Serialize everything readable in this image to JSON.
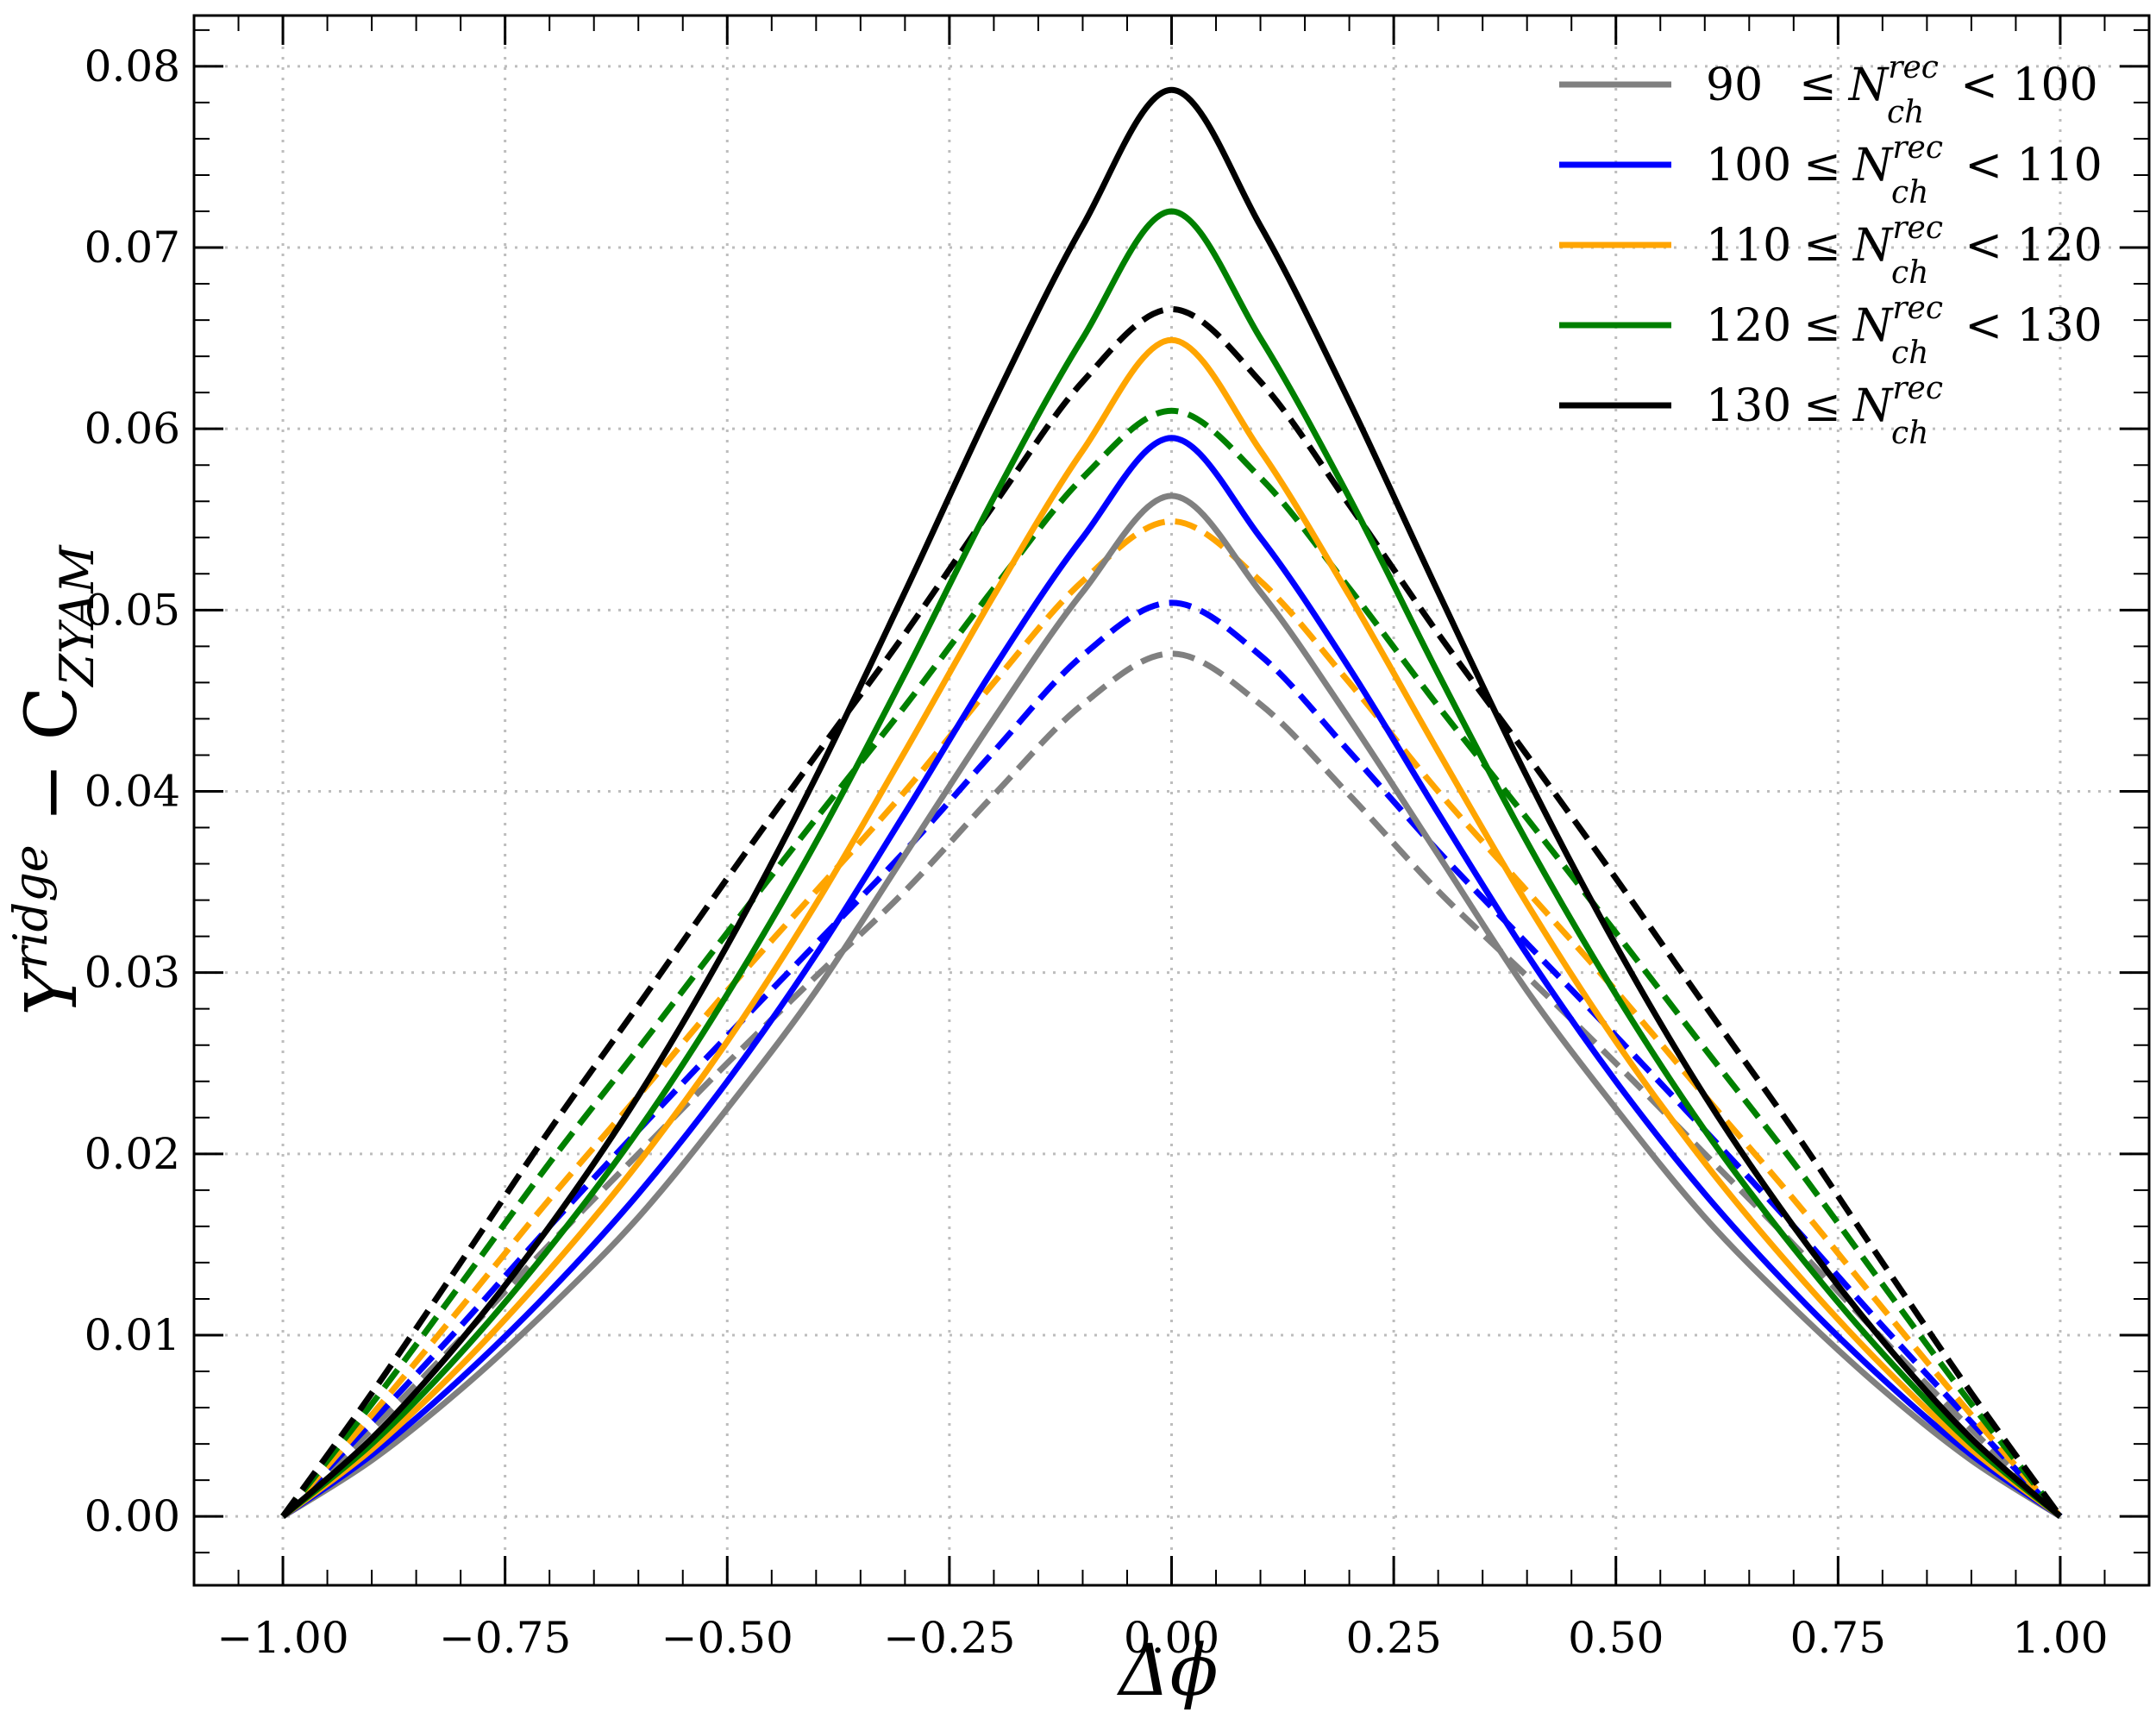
{
  "chart_data": {
    "type": "line",
    "title": "",
    "xlabel": "Δϕ",
    "ylabel": {
      "base": "Y",
      "sup": "ridge",
      "minus": " − C",
      "sub": "ZYAM"
    },
    "xlim": [
      -1.1,
      1.1
    ],
    "ylim": [
      -0.0038,
      0.0828
    ],
    "x_ticks": [
      -1.0,
      -0.75,
      -0.5,
      -0.25,
      0.0,
      0.25,
      0.5,
      0.75,
      1.0
    ],
    "x_tick_labels": [
      "−1.00",
      "−0.75",
      "−0.50",
      "−0.25",
      "0.00",
      "0.25",
      "0.50",
      "0.75",
      "1.00"
    ],
    "y_ticks": [
      0.0,
      0.01,
      0.02,
      0.03,
      0.04,
      0.05,
      0.06,
      0.07,
      0.08
    ],
    "y_tick_labels": [
      "0.00",
      "0.01",
      "0.02",
      "0.03",
      "0.04",
      "0.05",
      "0.06",
      "0.07",
      "0.08"
    ],
    "grid": true,
    "legend_position": "top-right",
    "x": [
      -1.0,
      -0.9,
      -0.8,
      -0.7,
      -0.6,
      -0.5,
      -0.4,
      -0.3,
      -0.2,
      -0.1,
      0.0,
      0.1,
      0.2,
      0.3,
      0.4,
      0.5,
      0.6,
      0.7,
      0.8,
      0.9,
      1.0
    ],
    "series": [
      {
        "name": "90 ≤ N_ch^rec < 100",
        "legend": {
          "lo": "90",
          "hi": "< 100"
        },
        "color": "#808080",
        "style": "solid",
        "values": [
          0.0,
          0.0031,
          0.007,
          0.0115,
          0.0165,
          0.0225,
          0.029,
          0.0365,
          0.044,
          0.051,
          0.0563,
          0.051,
          0.044,
          0.0365,
          0.029,
          0.0225,
          0.0165,
          0.0115,
          0.007,
          0.0031,
          0.0
        ]
      },
      {
        "name": "100 ≤ N_ch^rec < 110",
        "legend": {
          "lo": "100",
          "hi": "< 110"
        },
        "color": "#0000ff",
        "style": "solid",
        "values": [
          0.0,
          0.0034,
          0.0076,
          0.0124,
          0.0178,
          0.024,
          0.031,
          0.0388,
          0.0468,
          0.054,
          0.0595,
          0.054,
          0.0468,
          0.0388,
          0.031,
          0.024,
          0.0178,
          0.0124,
          0.0076,
          0.0034,
          0.0
        ]
      },
      {
        "name": "110 ≤ N_ch^rec < 120",
        "legend": {
          "lo": "110",
          "hi": "< 120"
        },
        "color": "#ffa500",
        "style": "solid",
        "values": [
          0.0,
          0.0037,
          0.0083,
          0.0136,
          0.0195,
          0.0262,
          0.0338,
          0.0422,
          0.0508,
          0.0588,
          0.0649,
          0.0588,
          0.0508,
          0.0422,
          0.0338,
          0.0262,
          0.0195,
          0.0136,
          0.0083,
          0.0037,
          0.0
        ]
      },
      {
        "name": "120 ≤ N_ch^rec < 130",
        "legend": {
          "lo": "120",
          "hi": "< 130"
        },
        "color": "#008000",
        "style": "solid",
        "values": [
          0.0,
          0.004,
          0.009,
          0.0148,
          0.0213,
          0.0288,
          0.0372,
          0.0465,
          0.0562,
          0.065,
          0.072,
          0.065,
          0.0562,
          0.0465,
          0.0372,
          0.0288,
          0.0213,
          0.0148,
          0.009,
          0.004,
          0.0
        ]
      },
      {
        "name": "130 ≤ N_ch^rec",
        "legend": {
          "lo": "130",
          "hi": ""
        },
        "color": "#000000",
        "style": "solid",
        "values": [
          0.0,
          0.0043,
          0.0097,
          0.016,
          0.0232,
          0.0315,
          0.0408,
          0.051,
          0.0615,
          0.0712,
          0.0787,
          0.0712,
          0.0615,
          0.051,
          0.0408,
          0.0315,
          0.0232,
          0.016,
          0.0097,
          0.0043,
          0.0
        ]
      },
      {
        "color": "#808080",
        "style": "dashed",
        "values": [
          0.0,
          0.0048,
          0.0098,
          0.015,
          0.02,
          0.025,
          0.0298,
          0.0345,
          0.0398,
          0.0448,
          0.0476,
          0.0448,
          0.0398,
          0.0345,
          0.0298,
          0.025,
          0.02,
          0.015,
          0.0098,
          0.0048,
          0.0
        ]
      },
      {
        "color": "#0000ff",
        "style": "dashed",
        "values": [
          0.0,
          0.0052,
          0.0105,
          0.016,
          0.0213,
          0.0265,
          0.0316,
          0.0367,
          0.0422,
          0.0475,
          0.0504,
          0.0475,
          0.0422,
          0.0367,
          0.0316,
          0.0265,
          0.0213,
          0.016,
          0.0105,
          0.0052,
          0.0
        ]
      },
      {
        "color": "#ffa500",
        "style": "dashed",
        "values": [
          0.0,
          0.0056,
          0.0115,
          0.0175,
          0.0232,
          0.029,
          0.0345,
          0.04,
          0.046,
          0.0516,
          0.0549,
          0.0516,
          0.046,
          0.04,
          0.0345,
          0.029,
          0.0232,
          0.0175,
          0.0115,
          0.0056,
          0.0
        ]
      },
      {
        "color": "#008000",
        "style": "dashed",
        "values": [
          0.0,
          0.0062,
          0.0128,
          0.0195,
          0.0258,
          0.0322,
          0.0385,
          0.0447,
          0.0512,
          0.0573,
          0.061,
          0.0573,
          0.0512,
          0.0447,
          0.0385,
          0.0322,
          0.0258,
          0.0195,
          0.0128,
          0.0062,
          0.0
        ]
      },
      {
        "color": "#000000",
        "style": "dashed",
        "values": [
          0.0,
          0.0068,
          0.014,
          0.0213,
          0.0282,
          0.0352,
          0.042,
          0.0487,
          0.0558,
          0.0626,
          0.0666,
          0.0626,
          0.0558,
          0.0487,
          0.042,
          0.0352,
          0.0282,
          0.0213,
          0.014,
          0.0068,
          0.0
        ]
      }
    ],
    "legend_symbols": {
      "leq": "≤",
      "N": "N",
      "sup": "rec",
      "sub": "ch"
    }
  }
}
